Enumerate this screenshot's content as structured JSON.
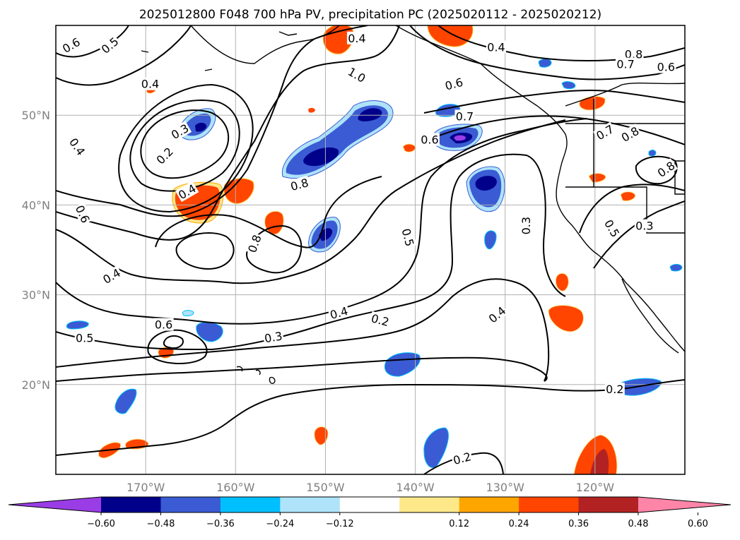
{
  "figure": {
    "title": "2025012800 F048 700 hPa PV, precipitation PC (2025020112 - 2025020212)"
  },
  "map": {
    "lon_range": [
      -180,
      -110
    ],
    "lat_range": [
      10,
      60
    ],
    "lat_labels": [
      {
        "lat": 50,
        "text": "50°N"
      },
      {
        "lat": 40,
        "text": "40°N"
      },
      {
        "lat": 30,
        "text": "30°N"
      },
      {
        "lat": 20,
        "text": "20°N"
      }
    ],
    "lon_labels": [
      {
        "lon": -170,
        "text": "170°W"
      },
      {
        "lon": -160,
        "text": "160°W"
      },
      {
        "lon": -150,
        "text": "150°W"
      },
      {
        "lon": -140,
        "text": "140°W"
      },
      {
        "lon": -130,
        "text": "130°W"
      },
      {
        "lon": -120,
        "text": "120°W"
      }
    ],
    "grid": true,
    "contour_labels": [
      {
        "text": "0.6",
        "lon": -178.3,
        "lat": 57.8,
        "rot": 30
      },
      {
        "text": "0.5",
        "lon": -174,
        "lat": 57.8,
        "rot": 40
      },
      {
        "text": "0.4",
        "lon": -169.5,
        "lat": 53.5,
        "rot": 0
      },
      {
        "text": "0.4",
        "lon": -146.5,
        "lat": 58.6,
        "rot": 0
      },
      {
        "text": "1.0",
        "lon": -146.5,
        "lat": 54.5,
        "rot": -30
      },
      {
        "text": "0.4",
        "lon": -131,
        "lat": 57.6,
        "rot": 0
      },
      {
        "text": "0.6",
        "lon": -135.7,
        "lat": 53.5,
        "rot": 15
      },
      {
        "text": "0.7",
        "lon": -134.5,
        "lat": 49.9,
        "rot": 0
      },
      {
        "text": "0.6",
        "lon": -138.4,
        "lat": 47.3,
        "rot": 0
      },
      {
        "text": "0.8",
        "lon": -115.7,
        "lat": 56.8,
        "rot": 0
      },
      {
        "text": "0.7",
        "lon": -116.6,
        "lat": 55.7,
        "rot": 0
      },
      {
        "text": "0.6",
        "lon": -112.1,
        "lat": 55.4,
        "rot": 0
      },
      {
        "text": "0.7",
        "lon": -118.9,
        "lat": 48.1,
        "rot": 30
      },
      {
        "text": "0.8",
        "lon": -116.1,
        "lat": 47.9,
        "rot": 30
      },
      {
        "text": "0.8",
        "lon": -112.1,
        "lat": 44,
        "rot": 35
      },
      {
        "text": "0.5",
        "lon": -118.1,
        "lat": 37.4,
        "rot": -60
      },
      {
        "text": "0.3",
        "lon": -114.5,
        "lat": 37.7,
        "rot": 0
      },
      {
        "text": "0.3",
        "lon": -166.2,
        "lat": 48.2,
        "rot": 30
      },
      {
        "text": "0.2",
        "lon": -167.9,
        "lat": 45.5,
        "rot": 45
      },
      {
        "text": "0.4",
        "lon": -177.6,
        "lat": 46.5,
        "rot": -55
      },
      {
        "text": "0.4",
        "lon": -165.4,
        "lat": 41.5,
        "rot": 30
      },
      {
        "text": "0.6",
        "lon": -177,
        "lat": 39,
        "rot": -65
      },
      {
        "text": "0.8",
        "lon": -152.9,
        "lat": 42.3,
        "rot": 15
      },
      {
        "text": "0.8",
        "lon": -157.9,
        "lat": 35.7,
        "rot": 70
      },
      {
        "text": "0.5",
        "lon": -140.8,
        "lat": 36.4,
        "rot": -75
      },
      {
        "text": "0.3",
        "lon": -127.7,
        "lat": 37.7,
        "rot": 90
      },
      {
        "text": "0.4",
        "lon": -173.8,
        "lat": 32.1,
        "rot": 30
      },
      {
        "text": "0.6",
        "lon": -168,
        "lat": 26.7,
        "rot": 0
      },
      {
        "text": "0.5",
        "lon": -176.8,
        "lat": 25.2,
        "rot": 0
      },
      {
        "text": "0.3",
        "lon": -155.8,
        "lat": 25.3,
        "rot": 10
      },
      {
        "text": "0.4",
        "lon": -148.5,
        "lat": 28,
        "rot": 15
      },
      {
        "text": "0.2",
        "lon": -143.9,
        "lat": 27.2,
        "rot": -15
      },
      {
        "text": "0.4",
        "lon": -130.9,
        "lat": 27.8,
        "rot": 40
      },
      {
        "text": "0.2",
        "lon": -117.8,
        "lat": 19.5,
        "rot": 0
      },
      {
        "text": "0.2",
        "lon": -134.8,
        "lat": 11.8,
        "rot": 15
      }
    ]
  },
  "colorbar": {
    "ticks": [
      "−0.60",
      "−0.48",
      "−0.36",
      "−0.24",
      "−0.12",
      "0.12",
      "0.24",
      "0.36",
      "0.48",
      "0.60"
    ],
    "under_color": "#9a3de6",
    "over_color": "#ff85a8",
    "colors": [
      "#00008b",
      "#3a5bd3",
      "#00bfff",
      "#aee3fa",
      "#ffffff",
      "#fde88a",
      "#ffa500",
      "#ff4500",
      "#b22222"
    ]
  }
}
